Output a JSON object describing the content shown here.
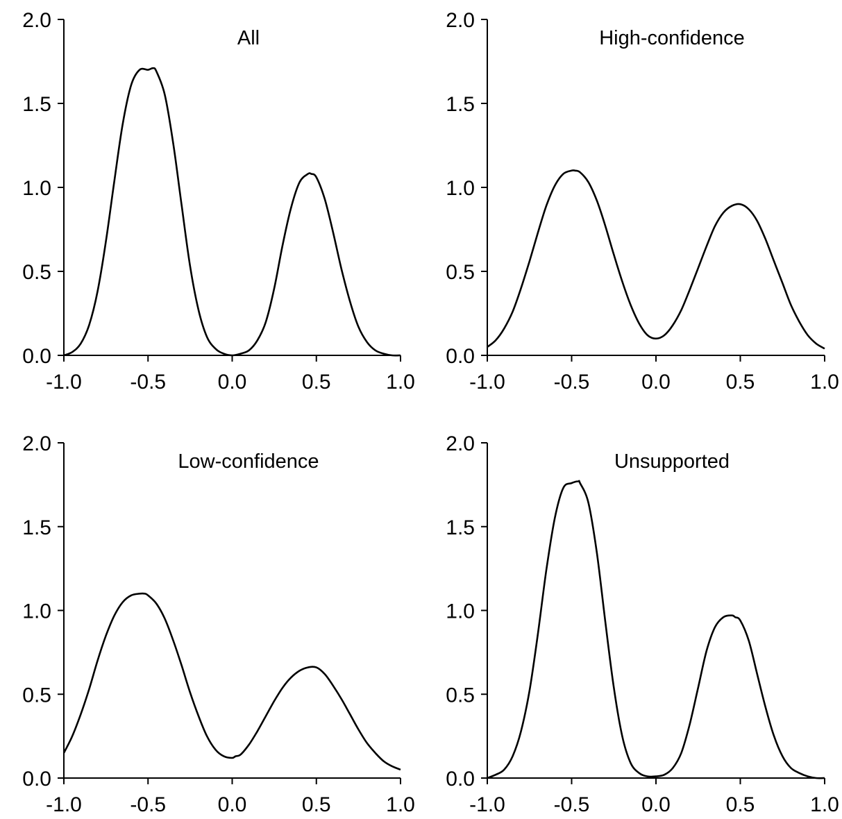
{
  "figure": {
    "line_color": "#000000",
    "background": "#ffffff"
  },
  "chart_data": [
    {
      "type": "line",
      "title": "All",
      "xlabel": "",
      "ylabel": "",
      "xlim": [
        -1.0,
        1.0
      ],
      "ylim": [
        0.0,
        2.0
      ],
      "xticks": [
        "-1.0",
        "-0.5",
        "0.0",
        "0.5",
        "1.0"
      ],
      "yticks": [
        "0.0",
        "0.5",
        "1.0",
        "1.5",
        "2.0"
      ],
      "grid": false,
      "series": [
        {
          "x": [
            -1.0,
            -0.95,
            -0.9,
            -0.85,
            -0.8,
            -0.75,
            -0.7,
            -0.65,
            -0.6,
            -0.55,
            -0.5,
            -0.47,
            -0.45,
            -0.4,
            -0.35,
            -0.3,
            -0.25,
            -0.2,
            -0.15,
            -0.1,
            -0.05,
            0.0,
            0.05,
            0.1,
            0.15,
            0.2,
            0.25,
            0.3,
            0.35,
            0.4,
            0.45,
            0.47,
            0.5,
            0.55,
            0.6,
            0.65,
            0.7,
            0.75,
            0.8,
            0.85,
            0.9,
            0.95,
            1.0
          ],
          "y": [
            0.0,
            0.02,
            0.07,
            0.18,
            0.38,
            0.68,
            1.04,
            1.38,
            1.61,
            1.7,
            1.7,
            1.71,
            1.69,
            1.55,
            1.26,
            0.89,
            0.53,
            0.27,
            0.11,
            0.04,
            0.01,
            0.0,
            0.01,
            0.03,
            0.09,
            0.2,
            0.4,
            0.66,
            0.88,
            1.03,
            1.08,
            1.08,
            1.06,
            0.93,
            0.73,
            0.51,
            0.32,
            0.17,
            0.08,
            0.03,
            0.01,
            0.0,
            0.0
          ]
        }
      ]
    },
    {
      "type": "line",
      "title": "High-confidence",
      "xlabel": "",
      "ylabel": "",
      "xlim": [
        -1.0,
        1.0
      ],
      "ylim": [
        0.0,
        2.0
      ],
      "xticks": [
        "-1.0",
        "-0.5",
        "0.0",
        "0.5",
        "1.0"
      ],
      "yticks": [
        "0.0",
        "0.5",
        "1.0",
        "1.5",
        "2.0"
      ],
      "grid": false,
      "series": [
        {
          "x": [
            -1.0,
            -0.95,
            -0.9,
            -0.85,
            -0.8,
            -0.75,
            -0.7,
            -0.65,
            -0.6,
            -0.55,
            -0.5,
            -0.48,
            -0.45,
            -0.4,
            -0.35,
            -0.3,
            -0.25,
            -0.2,
            -0.15,
            -0.1,
            -0.05,
            0.0,
            0.05,
            0.1,
            0.15,
            0.2,
            0.25,
            0.3,
            0.35,
            0.4,
            0.45,
            0.5,
            0.55,
            0.6,
            0.65,
            0.7,
            0.75,
            0.8,
            0.85,
            0.9,
            0.95,
            1.0
          ],
          "y": [
            0.05,
            0.09,
            0.16,
            0.26,
            0.4,
            0.56,
            0.73,
            0.89,
            1.01,
            1.08,
            1.1,
            1.1,
            1.09,
            1.03,
            0.92,
            0.77,
            0.6,
            0.44,
            0.3,
            0.19,
            0.12,
            0.1,
            0.12,
            0.18,
            0.27,
            0.39,
            0.52,
            0.65,
            0.77,
            0.85,
            0.89,
            0.9,
            0.87,
            0.8,
            0.69,
            0.56,
            0.43,
            0.3,
            0.2,
            0.12,
            0.07,
            0.04
          ]
        }
      ]
    },
    {
      "type": "line",
      "title": "Low-confidence",
      "xlabel": "",
      "ylabel": "",
      "xlim": [
        -1.0,
        1.0
      ],
      "ylim": [
        0.0,
        2.0
      ],
      "xticks": [
        "-1.0",
        "-0.5",
        "0.0",
        "0.5",
        "1.0"
      ],
      "yticks": [
        "0.0",
        "0.5",
        "1.0",
        "1.5",
        "2.0"
      ],
      "grid": false,
      "series": [
        {
          "x": [
            -1.0,
            -0.95,
            -0.9,
            -0.85,
            -0.8,
            -0.75,
            -0.7,
            -0.65,
            -0.6,
            -0.55,
            -0.52,
            -0.5,
            -0.45,
            -0.4,
            -0.35,
            -0.3,
            -0.25,
            -0.2,
            -0.15,
            -0.1,
            -0.05,
            0.0,
            0.02,
            0.05,
            0.1,
            0.15,
            0.2,
            0.25,
            0.3,
            0.35,
            0.4,
            0.45,
            0.5,
            0.55,
            0.6,
            0.65,
            0.7,
            0.75,
            0.8,
            0.85,
            0.9,
            0.95,
            1.0
          ],
          "y": [
            0.15,
            0.25,
            0.38,
            0.53,
            0.7,
            0.85,
            0.97,
            1.05,
            1.09,
            1.1,
            1.1,
            1.09,
            1.04,
            0.95,
            0.82,
            0.67,
            0.51,
            0.37,
            0.25,
            0.17,
            0.13,
            0.12,
            0.13,
            0.14,
            0.2,
            0.28,
            0.37,
            0.46,
            0.54,
            0.6,
            0.64,
            0.66,
            0.66,
            0.62,
            0.55,
            0.47,
            0.38,
            0.29,
            0.21,
            0.15,
            0.1,
            0.07,
            0.05
          ]
        }
      ]
    },
    {
      "type": "line",
      "title": "Unsupported",
      "xlabel": "",
      "ylabel": "",
      "xlim": [
        -1.0,
        1.0
      ],
      "ylim": [
        0.0,
        2.0
      ],
      "xticks": [
        "-1.0",
        "-0.5",
        "0.0",
        "0.5",
        "1.0"
      ],
      "yticks": [
        "0.0",
        "0.5",
        "1.0",
        "1.5",
        "2.0"
      ],
      "grid": false,
      "series": [
        {
          "x": [
            -1.0,
            -0.95,
            -0.9,
            -0.85,
            -0.8,
            -0.75,
            -0.7,
            -0.65,
            -0.6,
            -0.55,
            -0.5,
            -0.46,
            -0.45,
            -0.4,
            -0.35,
            -0.3,
            -0.25,
            -0.2,
            -0.15,
            -0.1,
            -0.05,
            0.0,
            0.05,
            0.1,
            0.15,
            0.2,
            0.25,
            0.3,
            0.35,
            0.4,
            0.45,
            0.47,
            0.5,
            0.55,
            0.6,
            0.65,
            0.7,
            0.75,
            0.8,
            0.85,
            0.9,
            0.95,
            1.0
          ],
          "y": [
            0.0,
            0.02,
            0.05,
            0.13,
            0.28,
            0.52,
            0.86,
            1.24,
            1.55,
            1.73,
            1.76,
            1.77,
            1.76,
            1.64,
            1.34,
            0.93,
            0.54,
            0.25,
            0.09,
            0.03,
            0.01,
            0.01,
            0.02,
            0.06,
            0.15,
            0.32,
            0.54,
            0.76,
            0.9,
            0.96,
            0.97,
            0.96,
            0.94,
            0.82,
            0.62,
            0.42,
            0.25,
            0.13,
            0.06,
            0.03,
            0.01,
            0.0,
            0.0
          ]
        }
      ]
    }
  ]
}
